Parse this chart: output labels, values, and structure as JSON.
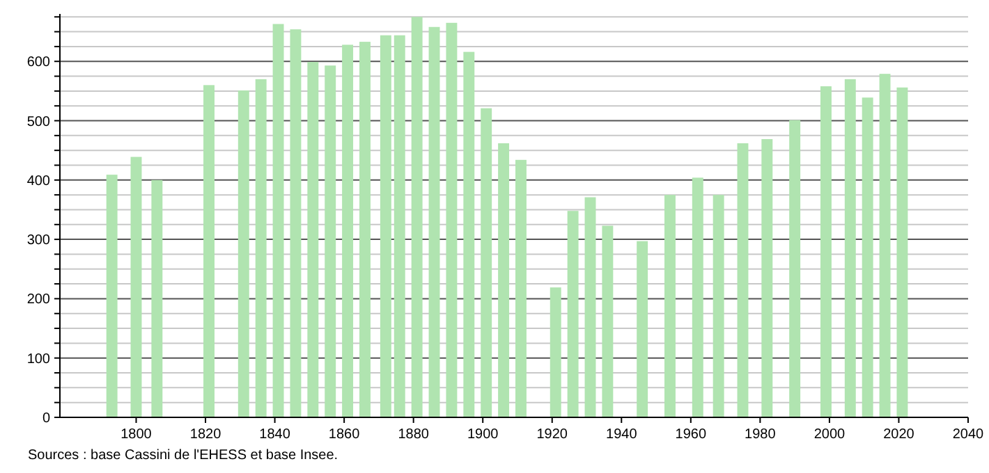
{
  "chart_data": {
    "type": "bar",
    "x": [
      1793,
      1800,
      1806,
      1821,
      1831,
      1836,
      1841,
      1846,
      1851,
      1856,
      1861,
      1866,
      1872,
      1876,
      1881,
      1886,
      1891,
      1896,
      1901,
      1906,
      1911,
      1921,
      1926,
      1931,
      1936,
      1946,
      1954,
      1962,
      1968,
      1975,
      1982,
      1990,
      1999,
      2006,
      2011,
      2016,
      2021
    ],
    "values": [
      409,
      439,
      400,
      560,
      551,
      570,
      663,
      654,
      599,
      593,
      628,
      633,
      644,
      644,
      675,
      658,
      665,
      616,
      521,
      462,
      434,
      219,
      348,
      371,
      323,
      297,
      375,
      404,
      375,
      462,
      469,
      501,
      558,
      570,
      539,
      579,
      556
    ],
    "color": "#b0e4b0",
    "xlim": [
      1778,
      2040
    ],
    "xticks": [
      1800,
      1820,
      1840,
      1860,
      1880,
      1900,
      1920,
      1940,
      1960,
      1980,
      2000,
      2020,
      2040
    ],
    "ylim": [
      0,
      680
    ],
    "yticks": [
      0,
      {
        "value": 25,
        "label": null
      },
      {
        "value": 50,
        "label": null
      },
      {
        "value": 75,
        "label": null
      },
      100,
      {
        "value": 125,
        "label": null
      },
      {
        "value": 150,
        "label": null
      },
      {
        "value": 175,
        "label": null
      },
      200,
      {
        "value": 225,
        "label": null
      },
      {
        "value": 250,
        "label": null
      },
      {
        "value": 275,
        "label": null
      },
      300,
      {
        "value": 325,
        "label": null
      },
      {
        "value": 350,
        "label": null
      },
      {
        "value": 375,
        "label": null
      },
      400,
      {
        "value": 425,
        "label": null
      },
      {
        "value": 450,
        "label": null
      },
      {
        "value": 475,
        "label": null
      },
      500,
      {
        "value": 525,
        "label": null
      },
      {
        "value": 550,
        "label": null
      },
      {
        "value": 575,
        "label": null
      },
      600,
      {
        "value": 625,
        "label": null
      },
      {
        "value": 650,
        "label": null
      },
      {
        "value": 675,
        "label": null
      }
    ],
    "grid": true,
    "annotations": [
      "Sources : base Cassini de l'EHESS et base Insee."
    ]
  }
}
